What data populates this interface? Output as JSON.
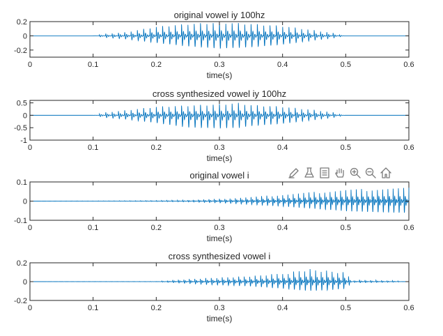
{
  "chart_data": [
    {
      "type": "line",
      "title": "original vowel iy 100hz",
      "xlabel": "time(s)",
      "ylabel": "",
      "xlim": [
        0,
        0.6
      ],
      "ylim": [
        -0.3,
        0.2
      ],
      "xticks": [
        "0",
        "0.1",
        "0.2",
        "0.3",
        "0.4",
        "0.5",
        "0.6"
      ],
      "yticks": [
        "0.2",
        "0",
        "-0.2"
      ],
      "ytick_values": [
        0.2,
        0,
        -0.2
      ],
      "series": [
        {
          "x": [
            0,
            0.1,
            0.12,
            0.15,
            0.2,
            0.25,
            0.3,
            0.33,
            0.35,
            0.4,
            0.45,
            0.48,
            0.5,
            0.6
          ],
          "upper": [
            0,
            0,
            0.03,
            0.05,
            0.13,
            0.17,
            0.19,
            0.18,
            0.17,
            0.14,
            0.08,
            0.04,
            0,
            0
          ],
          "lower": [
            0,
            0,
            -0.04,
            -0.07,
            -0.16,
            -0.24,
            -0.29,
            -0.27,
            -0.26,
            -0.2,
            -0.1,
            -0.05,
            0,
            0
          ],
          "frequency_hz": 100
        }
      ]
    },
    {
      "type": "line",
      "title": "cross synthesized vowel iy 100hz",
      "xlabel": "time(s)",
      "ylabel": "",
      "xlim": [
        0,
        0.6
      ],
      "ylim": [
        -1,
        0.6
      ],
      "xticks": [
        "0",
        "0.1",
        "0.2",
        "0.3",
        "0.4",
        "0.5",
        "0.6"
      ],
      "yticks": [
        "0.5",
        "0",
        "-0.5",
        "-1"
      ],
      "ytick_values": [
        0.5,
        0,
        -0.5,
        -1
      ],
      "series": [
        {
          "x": [
            0,
            0.1,
            0.12,
            0.15,
            0.2,
            0.25,
            0.3,
            0.33,
            0.35,
            0.4,
            0.45,
            0.48,
            0.5,
            0.6
          ],
          "upper": [
            0,
            0,
            0.12,
            0.2,
            0.35,
            0.4,
            0.45,
            0.5,
            0.42,
            0.35,
            0.22,
            0.12,
            0,
            0
          ],
          "lower": [
            0,
            0,
            -0.15,
            -0.25,
            -0.5,
            -0.8,
            -0.85,
            -0.82,
            -0.7,
            -0.55,
            -0.3,
            -0.15,
            0,
            0
          ],
          "frequency_hz": 100
        }
      ]
    },
    {
      "type": "line",
      "title": "original vowel i",
      "xlabel": "time(s)",
      "ylabel": "",
      "xlim": [
        0,
        0.6
      ],
      "ylim": [
        -0.1,
        0.1
      ],
      "xticks": [
        "0",
        "0.1",
        "0.2",
        "0.3",
        "0.4",
        "0.5",
        "0.6"
      ],
      "yticks": [
        "0.1",
        "0",
        "-0.1"
      ],
      "ytick_values": [
        0.1,
        0,
        -0.1
      ],
      "series": [
        {
          "x": [
            0,
            0.1,
            0.2,
            0.25,
            0.3,
            0.35,
            0.4,
            0.45,
            0.5,
            0.55,
            0.6
          ],
          "upper": [
            0,
            0.001,
            0.003,
            0.006,
            0.012,
            0.022,
            0.035,
            0.048,
            0.06,
            0.066,
            0.07
          ],
          "lower": [
            0,
            -0.001,
            -0.003,
            -0.007,
            -0.015,
            -0.028,
            -0.045,
            -0.065,
            -0.085,
            -0.095,
            -0.1
          ],
          "frequency_hz": 120
        }
      ]
    },
    {
      "type": "line",
      "title": "cross synthesized vowel i",
      "xlabel": "time(s)",
      "ylabel": "",
      "xlim": [
        0,
        0.6
      ],
      "ylim": [
        -0.2,
        0.2
      ],
      "xticks": [
        "0",
        "0.1",
        "0.2",
        "0.3",
        "0.4",
        "0.5",
        "0.6"
      ],
      "yticks": [
        "0.2",
        "0",
        "-0.2"
      ],
      "ytick_values": [
        0.2,
        0,
        -0.2
      ],
      "series": [
        {
          "x": [
            0,
            0.2,
            0.23,
            0.28,
            0.35,
            0.4,
            0.44,
            0.47,
            0.5,
            0.51,
            0.52,
            0.58,
            0.59,
            0.6
          ],
          "upper": [
            0,
            0.002,
            0.02,
            0.04,
            0.06,
            0.09,
            0.14,
            0.12,
            0.1,
            0.01,
            0.02,
            0.01,
            0,
            0
          ],
          "lower": [
            0,
            -0.002,
            -0.02,
            -0.05,
            -0.08,
            -0.12,
            -0.16,
            -0.15,
            -0.12,
            -0.01,
            -0.02,
            -0.01,
            0,
            0
          ],
          "frequency_hz": 115
        }
      ]
    }
  ],
  "toolbar": {
    "tools": [
      {
        "name": "edit-plot-icon"
      },
      {
        "name": "insert-legend-icon"
      },
      {
        "name": "insert-colorbar-icon"
      },
      {
        "name": "pan-hand-icon"
      },
      {
        "name": "zoom-in-icon"
      },
      {
        "name": "zoom-out-icon"
      },
      {
        "name": "home-icon"
      }
    ]
  },
  "colors": {
    "signal": "#0072bd",
    "axes": "#262626",
    "toolbar_icon": "#7a7a7a"
  }
}
